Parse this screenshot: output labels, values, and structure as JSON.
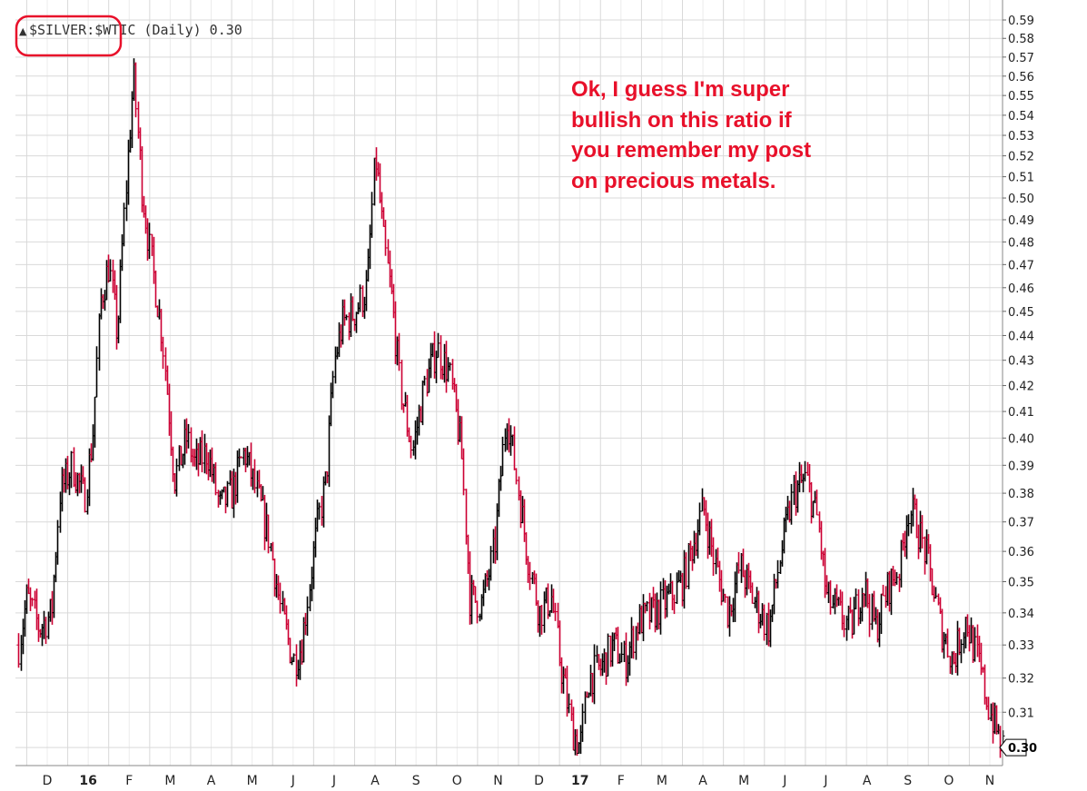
{
  "chart_data": {
    "type": "ohlc",
    "title": "$SILVER:$WTIC (Daily) 0.30",
    "legend_prefix": "▲",
    "legend_text": "$SILVER:$WTIC (Daily) 0.30",
    "last_value_label": "0.30",
    "ylim": [
      0.295,
      0.59
    ],
    "yscale": "log",
    "yticks": [
      0.3,
      0.31,
      0.32,
      0.33,
      0.34,
      0.35,
      0.36,
      0.37,
      0.38,
      0.39,
      0.4,
      0.41,
      0.42,
      0.43,
      0.44,
      0.45,
      0.46,
      0.47,
      0.48,
      0.49,
      0.5,
      0.51,
      0.52,
      0.53,
      0.54,
      0.55,
      0.56,
      0.57,
      0.58,
      0.59
    ],
    "ytick_labels": [
      "0.31",
      "0.32",
      "0.33",
      "0.34",
      "0.35",
      "0.36",
      "0.37",
      "0.38",
      "0.39",
      "0.40",
      "0.41",
      "0.42",
      "0.43",
      "0.44",
      "0.45",
      "0.46",
      "0.47",
      "0.48",
      "0.49",
      "0.50",
      "0.51",
      "0.52",
      "0.53",
      "0.54",
      "0.55",
      "0.56",
      "0.57",
      "0.58",
      "0.59"
    ],
    "ytick_label_values": [
      0.31,
      0.32,
      0.33,
      0.34,
      0.35,
      0.36,
      0.37,
      0.38,
      0.39,
      0.4,
      0.41,
      0.42,
      0.43,
      0.44,
      0.45,
      0.46,
      0.47,
      0.48,
      0.49,
      0.5,
      0.51,
      0.52,
      0.53,
      0.54,
      0.55,
      0.56,
      0.57,
      0.58,
      0.59
    ],
    "x_month_labels": [
      "D",
      "16",
      "F",
      "M",
      "A",
      "M",
      "J",
      "J",
      "A",
      "S",
      "O",
      "N",
      "D",
      "17",
      "F",
      "M",
      "A",
      "M",
      "J",
      "J",
      "A",
      "S",
      "O",
      "N"
    ],
    "x_bold_labels": [
      "16",
      "17"
    ],
    "x_label_positions_months": [
      0,
      1,
      2,
      3,
      4,
      5,
      6,
      7,
      8,
      9,
      10,
      11,
      12,
      13,
      14,
      15,
      16,
      17,
      18,
      19,
      20,
      21,
      22,
      23
    ],
    "x_range_months": [
      -0.7,
      23.3
    ],
    "grid": true,
    "up_color": "#000000",
    "down_color": "#cc0033",
    "anchors": [
      [
        -0.7,
        0.33
      ],
      [
        -0.5,
        0.345
      ],
      [
        -0.2,
        0.335
      ],
      [
        0.1,
        0.34
      ],
      [
        0.3,
        0.38
      ],
      [
        0.6,
        0.39
      ],
      [
        0.9,
        0.378
      ],
      [
        1.1,
        0.4
      ],
      [
        1.3,
        0.455
      ],
      [
        1.5,
        0.47
      ],
      [
        1.7,
        0.44
      ],
      [
        1.9,
        0.5
      ],
      [
        2.1,
        0.56
      ],
      [
        2.3,
        0.505
      ],
      [
        2.5,
        0.475
      ],
      [
        2.8,
        0.44
      ],
      [
        3.1,
        0.385
      ],
      [
        3.4,
        0.4
      ],
      [
        3.6,
        0.39
      ],
      [
        3.9,
        0.395
      ],
      [
        4.2,
        0.375
      ],
      [
        4.5,
        0.38
      ],
      [
        4.8,
        0.395
      ],
      [
        5.1,
        0.38
      ],
      [
        5.4,
        0.365
      ],
      [
        5.7,
        0.34
      ],
      [
        6.0,
        0.325
      ],
      [
        6.2,
        0.33
      ],
      [
        6.4,
        0.35
      ],
      [
        6.6,
        0.37
      ],
      [
        6.8,
        0.385
      ],
      [
        7.0,
        0.43
      ],
      [
        7.2,
        0.445
      ],
      [
        7.5,
        0.45
      ],
      [
        7.8,
        0.46
      ],
      [
        8.0,
        0.52
      ],
      [
        8.2,
        0.48
      ],
      [
        8.4,
        0.455
      ],
      [
        8.6,
        0.42
      ],
      [
        8.9,
        0.395
      ],
      [
        9.2,
        0.42
      ],
      [
        9.5,
        0.435
      ],
      [
        9.8,
        0.425
      ],
      [
        10.1,
        0.395
      ],
      [
        10.3,
        0.345
      ],
      [
        10.6,
        0.343
      ],
      [
        10.9,
        0.36
      ],
      [
        11.2,
        0.41
      ],
      [
        11.4,
        0.39
      ],
      [
        11.7,
        0.36
      ],
      [
        12.0,
        0.34
      ],
      [
        12.3,
        0.345
      ],
      [
        12.5,
        0.325
      ],
      [
        12.8,
        0.305
      ],
      [
        13.0,
        0.3
      ],
      [
        13.2,
        0.32
      ],
      [
        13.5,
        0.323
      ],
      [
        13.8,
        0.33
      ],
      [
        14.1,
        0.325
      ],
      [
        14.4,
        0.337
      ],
      [
        14.8,
        0.34
      ],
      [
        15.2,
        0.345
      ],
      [
        15.5,
        0.35
      ],
      [
        15.8,
        0.365
      ],
      [
        16.0,
        0.375
      ],
      [
        16.3,
        0.355
      ],
      [
        16.6,
        0.34
      ],
      [
        16.9,
        0.355
      ],
      [
        17.2,
        0.345
      ],
      [
        17.6,
        0.335
      ],
      [
        17.9,
        0.36
      ],
      [
        18.2,
        0.38
      ],
      [
        18.5,
        0.385
      ],
      [
        18.8,
        0.37
      ],
      [
        19.0,
        0.345
      ],
      [
        19.3,
        0.34
      ],
      [
        19.6,
        0.335
      ],
      [
        19.9,
        0.35
      ],
      [
        20.2,
        0.335
      ],
      [
        20.5,
        0.348
      ],
      [
        20.8,
        0.355
      ],
      [
        21.0,
        0.375
      ],
      [
        21.2,
        0.37
      ],
      [
        21.5,
        0.355
      ],
      [
        21.8,
        0.335
      ],
      [
        22.1,
        0.325
      ],
      [
        22.4,
        0.338
      ],
      [
        22.7,
        0.325
      ],
      [
        23.0,
        0.31
      ],
      [
        23.3,
        0.3
      ]
    ]
  },
  "annotation": {
    "text": "Ok, I guess I'm super\nbullish on this ratio if\nyou remember my post\non precious metals.",
    "color": "#e8102a"
  },
  "highlight": {
    "shape": "rounded-rectangle",
    "color": "#e8102a"
  }
}
